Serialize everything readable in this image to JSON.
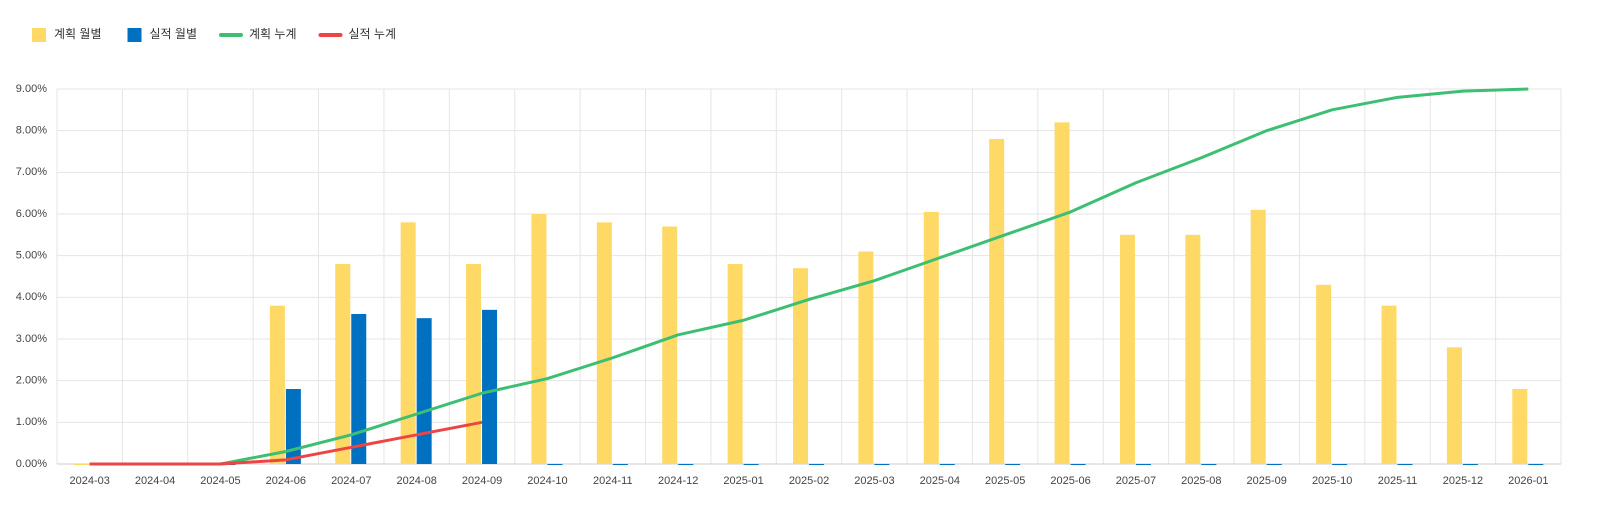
{
  "chart_data": {
    "type": "bar-line",
    "categories": [
      "2024-03",
      "2024-04",
      "2024-05",
      "2024-06",
      "2024-07",
      "2024-08",
      "2024-09",
      "2024-10",
      "2024-11",
      "2024-12",
      "2025-01",
      "2025-02",
      "2025-03",
      "2025-04",
      "2025-05",
      "2025-06",
      "2025-07",
      "2025-08",
      "2025-09",
      "2025-10",
      "2025-11",
      "2025-12",
      "2026-01"
    ],
    "series": [
      {
        "name": "계획 월별",
        "type": "bar",
        "color": "#ffd966",
        "values": [
          0,
          0,
          0,
          3.8,
          4.8,
          5.8,
          4.8,
          6.0,
          5.8,
          5.7,
          4.8,
          4.7,
          5.1,
          6.05,
          7.8,
          8.2,
          5.5,
          5.5,
          6.1,
          4.3,
          3.8,
          2.8,
          1.8
        ]
      },
      {
        "name": "실적 월별",
        "type": "bar",
        "color": "#0070c0",
        "values": [
          0,
          0,
          0,
          1.8,
          3.6,
          3.5,
          3.7,
          0,
          0,
          0,
          0,
          0,
          0,
          0,
          0,
          0,
          0,
          0,
          0,
          0,
          0,
          0,
          0
        ]
      },
      {
        "name": "계획 누계",
        "type": "line",
        "color": "#3dbf73",
        "values": [
          0,
          0,
          0,
          0.3,
          0.7,
          1.2,
          1.7,
          2.05,
          2.55,
          3.1,
          3.45,
          3.95,
          4.4,
          4.95,
          5.5,
          6.05,
          6.75,
          7.35,
          8.0,
          8.5,
          8.8,
          8.95,
          9.0
        ]
      },
      {
        "name": "실적 누계",
        "type": "line",
        "color": "#ef4444",
        "values": [
          0,
          0,
          0,
          0.1,
          0.4,
          0.7,
          1.0,
          null,
          null,
          null,
          null,
          null,
          null,
          null,
          null,
          null,
          null,
          null,
          null,
          null,
          null,
          null,
          null
        ]
      }
    ],
    "ylim": [
      0,
      9
    ],
    "yticks": [
      {
        "value": 0,
        "label": "0.00%"
      },
      {
        "value": 1,
        "label": "1.00%"
      },
      {
        "value": 2,
        "label": "2.00%"
      },
      {
        "value": 3,
        "label": "3.00%"
      },
      {
        "value": 4,
        "label": "4.00%"
      },
      {
        "value": 5,
        "label": "5.00%"
      },
      {
        "value": 6,
        "label": "6.00%"
      },
      {
        "value": 7,
        "label": "7.00%"
      },
      {
        "value": 8,
        "label": "8.00%"
      },
      {
        "value": 9,
        "label": "9.00%"
      }
    ],
    "grid": true,
    "legend": "top-left"
  }
}
